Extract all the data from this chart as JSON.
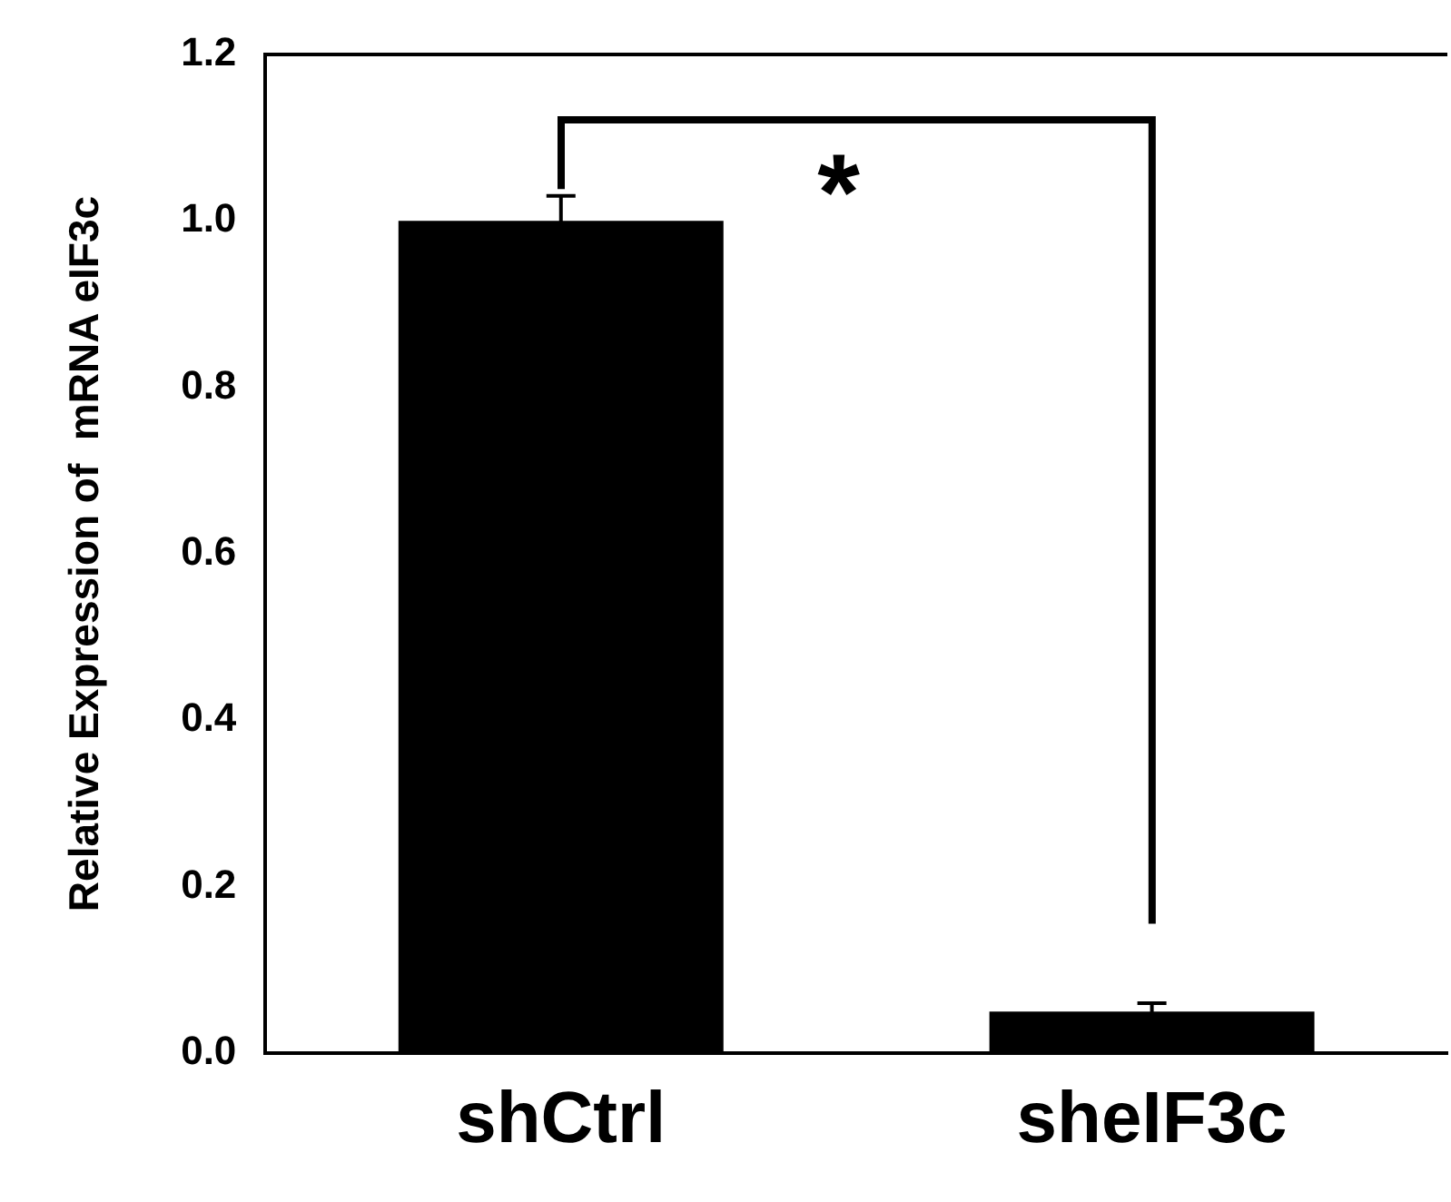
{
  "chart_data": {
    "type": "bar",
    "ylabel": "Relative Expression of  mRNA eIF3c",
    "categories": [
      "shCtrl",
      "sheIF3c"
    ],
    "values": [
      1.0,
      0.05
    ],
    "errors": [
      0.03,
      0.01
    ],
    "color": "#000000",
    "ylim": [
      0,
      1.2
    ],
    "yticks": [
      {
        "value": 0,
        "label": "0.0"
      },
      {
        "value": 0.2,
        "label": "0.2"
      },
      {
        "value": 0.4,
        "label": "0.4"
      },
      {
        "value": 0.6,
        "label": "0.6"
      },
      {
        "value": 0.8,
        "label": "0.8"
      },
      {
        "value": 1,
        "label": "1.0"
      },
      {
        "value": 1.2,
        "label": "1.2"
      }
    ],
    "grid": false,
    "legend": false,
    "annotations": [
      "*"
    ]
  }
}
